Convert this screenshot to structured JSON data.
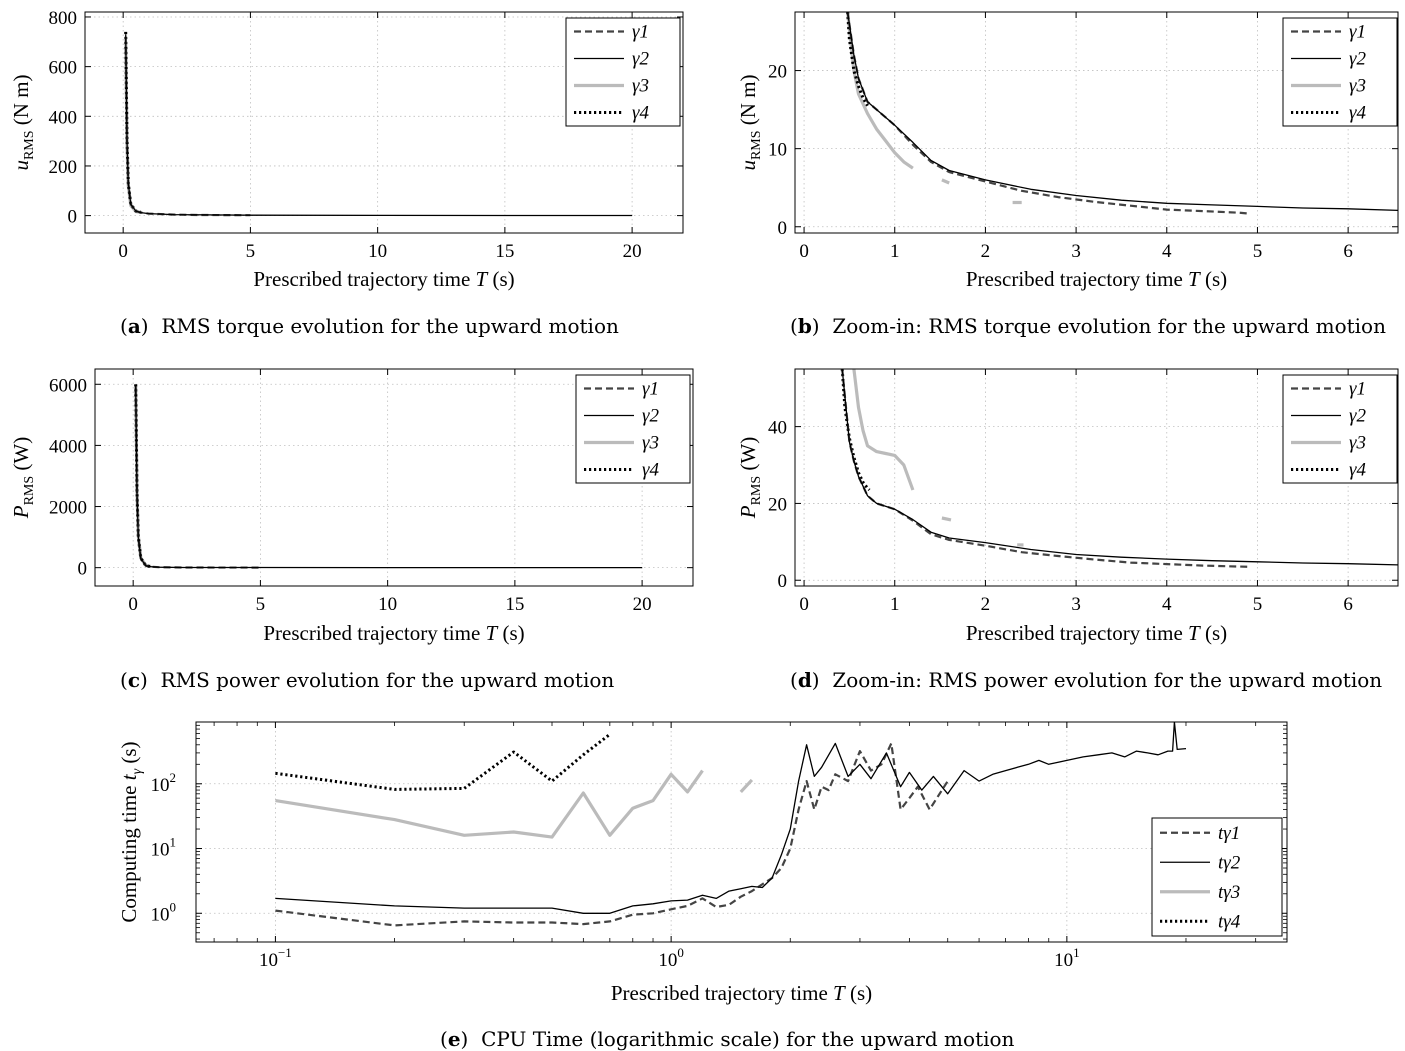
{
  "chart_data": [
    {
      "id": "a",
      "type": "line",
      "caption_letter": "a",
      "caption_text": "RMS torque evolution for the upward motion",
      "xlabel_main": "Prescribed trajectory time ",
      "xlabel_var": "T",
      "xlabel_unit": " (s)",
      "ylabel_var": "u",
      "ylabel_sub": "RMS",
      "ylabel_unit": " (N m)",
      "xlim": [
        -1.5,
        22
      ],
      "ylim": [
        -70,
        820
      ],
      "xticks": [
        0,
        5,
        10,
        15,
        20
      ],
      "yticks": [
        0,
        200,
        400,
        600,
        800
      ],
      "legend_position": "top-right",
      "series": [
        {
          "name": "γ1",
          "style": "dashed",
          "x": [
            0.1,
            0.15,
            0.2,
            0.3,
            0.5,
            0.7,
            1,
            2,
            3,
            5
          ],
          "y": [
            720,
            300,
            130,
            45,
            18,
            12,
            8,
            4,
            2.5,
            1.5
          ]
        },
        {
          "name": "γ2",
          "style": "solid",
          "x": [
            0.1,
            0.15,
            0.2,
            0.3,
            0.5,
            0.7,
            1,
            2,
            5,
            10,
            15,
            20
          ],
          "y": [
            730,
            300,
            130,
            45,
            18,
            12,
            8,
            4,
            1.5,
            0.8,
            0.5,
            0.4
          ]
        },
        {
          "name": "γ3",
          "style": "gray",
          "x": [
            0.1,
            0.15,
            0.2,
            0.3,
            0.5,
            0.7
          ],
          "y": [
            700,
            290,
            120,
            40,
            16,
            12
          ]
        },
        {
          "name": "γ4",
          "style": "dotted",
          "x": [
            0.1,
            0.15,
            0.2,
            0.3,
            0.5,
            0.7
          ],
          "y": [
            740,
            310,
            130,
            46,
            18,
            13
          ]
        }
      ]
    },
    {
      "id": "b",
      "type": "line",
      "caption_letter": "b",
      "caption_text": "Zoom-in: RMS torque evolution for the upward motion",
      "xlabel_main": "Prescribed trajectory time ",
      "xlabel_var": "T",
      "xlabel_unit": " (s)",
      "ylabel_var": "u",
      "ylabel_sub": "RMS",
      "ylabel_unit": " (N m)",
      "xlim": [
        -0.1,
        6.55
      ],
      "ylim": [
        -0.8,
        27.5
      ],
      "xticks": [
        0,
        1,
        2,
        3,
        4,
        5,
        6
      ],
      "yticks": [
        0,
        10,
        20
      ],
      "legend_position": "top-right",
      "series": [
        {
          "name": "γ1",
          "style": "dashed",
          "x": [
            0.48,
            0.55,
            0.6,
            0.7,
            0.8,
            1,
            1.2,
            1.4,
            1.6,
            2,
            2.4,
            2.8,
            3.2,
            3.6,
            4,
            4.4,
            4.8,
            4.9
          ],
          "y": [
            27.5,
            22,
            19,
            16,
            15,
            13,
            10.5,
            8.3,
            7,
            5.8,
            4.6,
            3.8,
            3.2,
            2.7,
            2.2,
            2,
            1.8,
            1.7
          ]
        },
        {
          "name": "γ2",
          "style": "solid",
          "x": [
            0.48,
            0.55,
            0.6,
            0.7,
            0.8,
            1,
            1.2,
            1.4,
            1.6,
            2,
            2.5,
            3,
            3.5,
            4,
            4.5,
            5,
            5.5,
            6,
            6.55
          ],
          "y": [
            27.5,
            22,
            19,
            16,
            15,
            13,
            10.8,
            8.5,
            7.2,
            6,
            4.8,
            4,
            3.4,
            3,
            2.8,
            2.6,
            2.4,
            2.3,
            2.1
          ]
        },
        {
          "name": "γ3",
          "style": "gray",
          "x": [
            0.48,
            0.55,
            0.6,
            0.7,
            0.8,
            0.9,
            1,
            1.1,
            1.2
          ],
          "y": [
            27.5,
            20,
            17,
            14.5,
            12.5,
            11,
            9.5,
            8.3,
            7.5
          ],
          "extra_segments": [
            {
              "x": [
                1.52,
                1.6
              ],
              "y": [
                6,
                5.6
              ]
            },
            {
              "x": [
                2.3,
                2.4
              ],
              "y": [
                3.1,
                3.1
              ]
            }
          ]
        },
        {
          "name": "γ4",
          "style": "dotted",
          "x": [
            0.48,
            0.5,
            0.55,
            0.6,
            0.65,
            0.7
          ],
          "y": [
            27.5,
            24,
            20,
            18,
            16.5,
            15.5
          ]
        }
      ]
    },
    {
      "id": "c",
      "type": "line",
      "caption_letter": "c",
      "caption_text": "RMS power evolution for the upward motion",
      "xlabel_main": "Prescribed trajectory time ",
      "xlabel_var": "T",
      "xlabel_unit": " (s)",
      "ylabel_var": "P",
      "ylabel_sub": "RMS",
      "ylabel_unit": " (W)",
      "xlim": [
        -1.5,
        22
      ],
      "ylim": [
        -600,
        6500
      ],
      "xticks": [
        0,
        5,
        10,
        15,
        20
      ],
      "yticks": [
        0,
        2000,
        4000,
        6000
      ],
      "legend_position": "top-right",
      "series": [
        {
          "name": "γ1",
          "style": "dashed",
          "x": [
            0.1,
            0.15,
            0.2,
            0.3,
            0.5,
            0.7,
            1,
            2,
            5
          ],
          "y": [
            5900,
            2400,
            1000,
            300,
            60,
            30,
            15,
            6,
            3
          ]
        },
        {
          "name": "γ2",
          "style": "solid",
          "x": [
            0.1,
            0.15,
            0.2,
            0.3,
            0.5,
            0.7,
            1,
            2,
            5,
            10,
            15,
            20
          ],
          "y": [
            5950,
            2400,
            1000,
            300,
            60,
            30,
            15,
            6,
            4,
            3,
            2,
            2
          ]
        },
        {
          "name": "γ3",
          "style": "gray",
          "x": [
            0.1,
            0.15,
            0.2,
            0.3,
            0.5,
            0.7
          ],
          "y": [
            6000,
            2500,
            1050,
            320,
            70,
            35
          ]
        },
        {
          "name": "γ4",
          "style": "dotted",
          "x": [
            0.1,
            0.15,
            0.2,
            0.3,
            0.5,
            0.7
          ],
          "y": [
            6000,
            2450,
            1020,
            310,
            62,
            32
          ]
        }
      ]
    },
    {
      "id": "d",
      "type": "line",
      "caption_letter": "d",
      "caption_text": "Zoom-in: RMS power evolution for the upward motion",
      "xlabel_main": "Prescribed trajectory time ",
      "xlabel_var": "T",
      "xlabel_unit": " (s)",
      "ylabel_var": "P",
      "ylabel_sub": "RMS",
      "ylabel_unit": " (W)",
      "xlim": [
        -0.1,
        6.55
      ],
      "ylim": [
        -1.5,
        55
      ],
      "xticks": [
        0,
        1,
        2,
        3,
        4,
        5,
        6
      ],
      "yticks": [
        0,
        20,
        40
      ],
      "legend_position": "top-right",
      "series": [
        {
          "name": "γ1",
          "style": "dashed",
          "x": [
            0.42,
            0.5,
            0.55,
            0.6,
            0.7,
            0.8,
            1,
            1.2,
            1.4,
            1.6,
            2,
            2.4,
            2.8,
            3.2,
            3.6,
            4,
            4.4,
            4.9
          ],
          "y": [
            55,
            36,
            31,
            27,
            22,
            20,
            18.5,
            15.5,
            12,
            10.5,
            9,
            7.3,
            6.3,
            5.4,
            4.6,
            4.2,
            3.8,
            3.5
          ]
        },
        {
          "name": "γ2",
          "style": "solid",
          "x": [
            0.42,
            0.5,
            0.55,
            0.6,
            0.7,
            0.8,
            1,
            1.2,
            1.4,
            1.6,
            2,
            2.5,
            3,
            3.5,
            4,
            4.5,
            5,
            5.5,
            6,
            6.55
          ],
          "y": [
            55,
            36,
            31,
            27,
            22,
            20,
            18.5,
            15.8,
            12.5,
            11,
            9.8,
            8,
            6.7,
            6,
            5.5,
            5.1,
            4.8,
            4.5,
            4.3,
            4
          ]
        },
        {
          "name": "γ3",
          "style": "gray",
          "x": [
            0.55,
            0.6,
            0.65,
            0.7,
            0.8,
            0.9,
            1,
            1.1,
            1.2
          ],
          "y": [
            55,
            45,
            39,
            35,
            33.5,
            33,
            32.5,
            30,
            23.5
          ],
          "extra_segments": [
            {
              "x": [
                1.52,
                1.62
              ],
              "y": [
                16.2,
                15.7
              ]
            },
            {
              "x": [
                2.35,
                2.42
              ],
              "y": [
                9.2,
                9.2
              ]
            }
          ]
        },
        {
          "name": "γ4",
          "style": "dotted",
          "x": [
            0.42,
            0.45,
            0.5,
            0.55,
            0.6,
            0.65,
            0.7,
            0.72
          ],
          "y": [
            55,
            45,
            37,
            32,
            28,
            25.5,
            24,
            23.5
          ]
        }
      ]
    },
    {
      "id": "e",
      "type": "line",
      "caption_letter": "e",
      "caption_text": "CPU Time (logarithmic scale) for the upward motion",
      "xlabel_main": "Prescribed trajectory time ",
      "xlabel_var": "T",
      "xlabel_unit": " (s)",
      "ylabel_text": "Computing time ",
      "ylabel_var": "t",
      "ylabel_sub": "γ",
      "ylabel_unit": " (s)",
      "xscale": "log",
      "yscale": "log",
      "xlim": [
        0.063,
        36
      ],
      "ylim": [
        0.36,
        900
      ],
      "xticks": [
        0.1,
        1,
        10
      ],
      "xtick_labels": [
        "10",
        "10",
        "10"
      ],
      "xtick_exponents": [
        "−1",
        "0",
        "1"
      ],
      "yticks": [
        1,
        10,
        100
      ],
      "ytick_labels": [
        "10",
        "10",
        "10"
      ],
      "ytick_exponents": [
        "0",
        "1",
        "2"
      ],
      "legend_position": "bottom-right",
      "series": [
        {
          "name": "tγ1",
          "style": "dashed",
          "x": [
            0.1,
            0.2,
            0.3,
            0.4,
            0.5,
            0.6,
            0.7,
            0.8,
            0.9,
            1,
            1.1,
            1.2,
            1.3,
            1.4,
            1.5,
            1.6,
            1.7,
            1.8,
            1.9,
            2,
            2.1,
            2.2,
            2.3,
            2.4,
            2.5,
            2.6,
            2.8,
            3,
            3.2,
            3.4,
            3.6,
            3.8,
            4,
            4.2,
            4.5,
            5
          ],
          "y": [
            1.1,
            0.65,
            0.75,
            0.72,
            0.72,
            0.68,
            0.75,
            0.95,
            1,
            1.15,
            1.3,
            1.7,
            1.25,
            1.35,
            1.8,
            2.2,
            2.8,
            3.5,
            5,
            10,
            40,
            110,
            40,
            90,
            80,
            140,
            110,
            320,
            160,
            200,
            420,
            40,
            60,
            90,
            40,
            110
          ]
        },
        {
          "name": "tγ2",
          "style": "solid",
          "x": [
            0.1,
            0.2,
            0.3,
            0.4,
            0.5,
            0.6,
            0.7,
            0.8,
            0.9,
            1,
            1.1,
            1.2,
            1.3,
            1.4,
            1.5,
            1.6,
            1.7,
            1.8,
            1.9,
            2,
            2.1,
            2.2,
            2.3,
            2.4,
            2.6,
            2.8,
            3,
            3.2,
            3.5,
            3.8,
            4,
            4.3,
            4.6,
            5,
            5.5,
            6,
            6.5,
            7,
            7.5,
            8,
            8.5,
            9,
            10,
            11,
            12,
            13,
            14,
            15,
            16,
            17,
            18,
            18.5,
            18.7,
            19,
            20
          ],
          "y": [
            1.7,
            1.3,
            1.2,
            1.2,
            1.2,
            1,
            1,
            1.3,
            1.4,
            1.55,
            1.6,
            1.9,
            1.7,
            2.2,
            2.4,
            2.6,
            2.5,
            3.5,
            8,
            20,
            110,
            400,
            130,
            180,
            420,
            130,
            200,
            120,
            300,
            90,
            150,
            80,
            130,
            70,
            160,
            110,
            140,
            160,
            180,
            200,
            230,
            200,
            230,
            260,
            280,
            300,
            260,
            320,
            300,
            280,
            320,
            320,
            900,
            340,
            350
          ]
        },
        {
          "name": "tγ3",
          "style": "gray",
          "x": [
            0.1,
            0.2,
            0.3,
            0.4,
            0.5,
            0.6,
            0.7,
            0.8,
            0.9,
            1,
            1.1,
            1.2
          ],
          "y": [
            55,
            28,
            16,
            18,
            15,
            72,
            16,
            42,
            55,
            140,
            75,
            160
          ],
          "extra_segments": [
            {
              "x": [
                1.5,
                1.6
              ],
              "y": [
                75,
                115
              ]
            }
          ]
        },
        {
          "name": "tγ4",
          "style": "dotted",
          "x": [
            0.1,
            0.2,
            0.3,
            0.4,
            0.5,
            0.6,
            0.7
          ],
          "y": [
            145,
            82,
            85,
            310,
            110,
            280,
            580
          ]
        }
      ]
    }
  ]
}
